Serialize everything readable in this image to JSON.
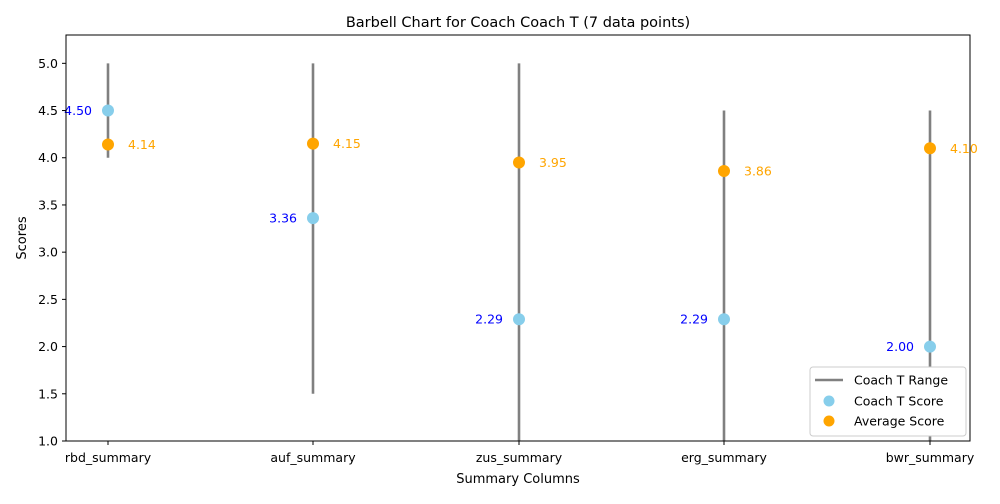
{
  "chart_data": {
    "type": "scatter",
    "title": "Barbell Chart for Coach Coach T (7 data points)",
    "xlabel": "Summary Columns",
    "ylabel": "Scores",
    "ylim": [
      1.0,
      5.3
    ],
    "yticks": [
      "1.0",
      "1.5",
      "2.0",
      "2.5",
      "3.0",
      "3.5",
      "4.0",
      "4.5",
      "5.0"
    ],
    "categories": [
      "rbd_summary",
      "auf_summary",
      "zus_summary",
      "erg_summary",
      "bwr_summary"
    ],
    "ranges": [
      [
        4.0,
        5.0
      ],
      [
        1.5,
        5.0
      ],
      [
        1.0,
        5.0
      ],
      [
        1.0,
        4.5
      ],
      [
        1.0,
        4.5
      ]
    ],
    "series": [
      {
        "name": "Coach T Score",
        "values": [
          4.5,
          3.36,
          2.29,
          2.29,
          2.0
        ],
        "labels": [
          "4.50",
          "3.36",
          "2.29",
          "2.29",
          "2.00"
        ],
        "color": "#87ceeb",
        "label_color": "#0000ff"
      },
      {
        "name": "Average Score",
        "values": [
          4.14,
          4.15,
          3.95,
          3.86,
          4.1
        ],
        "labels": [
          "4.14",
          "4.15",
          "3.95",
          "3.86",
          "4.10"
        ],
        "color": "#ffa500",
        "label_color": "#ffa500"
      }
    ],
    "range_color": "#808080",
    "legend": {
      "position": "bottom-right",
      "entries": [
        "Coach T Range",
        "Coach T Score",
        "Average Score"
      ]
    },
    "grid": false
  }
}
